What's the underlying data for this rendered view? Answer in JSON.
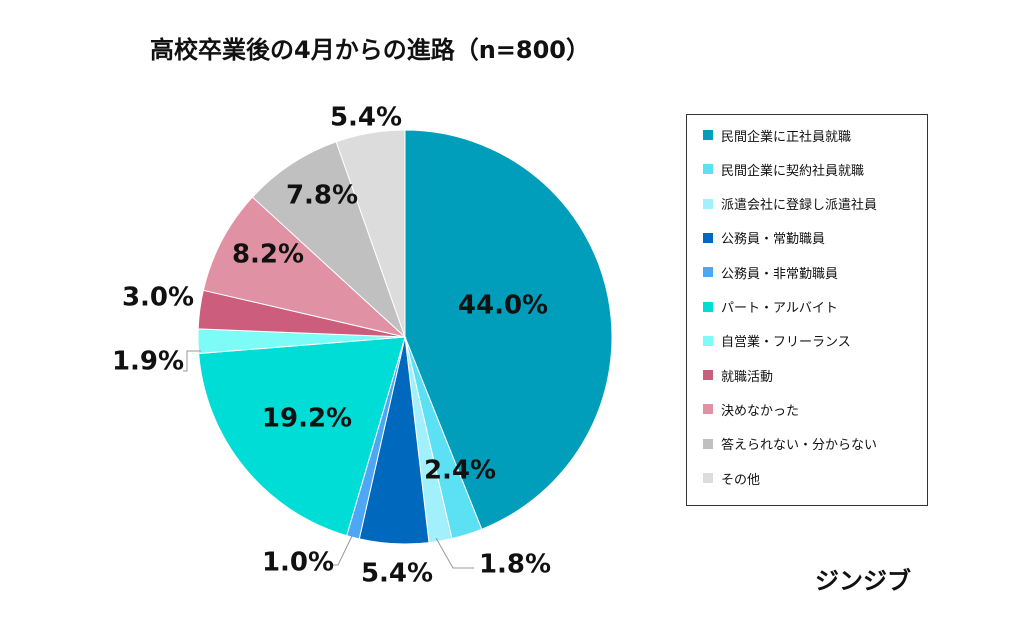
{
  "title": "高校卒業後の4月からの進路（n=800）",
  "brand": "ジンジブ",
  "chart_data": {
    "type": "pie",
    "title": "高校卒業後の4月からの進路（n=800）",
    "unit": "%",
    "legend_position": "right",
    "slices": [
      {
        "label": "民間企業に正社員就職",
        "value": 44.0,
        "display": "44.0%",
        "color": "#009eba"
      },
      {
        "label": "民間企業に契約社員就職",
        "value": 2.4,
        "display": "2.4%",
        "color": "#5ce0f3"
      },
      {
        "label": "派遣会社に登録し派遣社員",
        "value": 1.8,
        "display": "1.8%",
        "color": "#a2f0fb"
      },
      {
        "label": "公務員・常勤職員",
        "value": 5.4,
        "display": "5.4%",
        "color": "#0068bd"
      },
      {
        "label": "公務員・非常勤職員",
        "value": 1.0,
        "display": "1.0%",
        "color": "#4da7f5"
      },
      {
        "label": "パート・アルバイト",
        "value": 19.2,
        "display": "19.2%",
        "color": "#00ddd6"
      },
      {
        "label": "自営業・フリーランス",
        "value": 1.9,
        "display": "1.9%",
        "color": "#7cfbf7"
      },
      {
        "label": "就職活動",
        "value": 3.0,
        "display": "3.0%",
        "color": "#cc5d7d"
      },
      {
        "label": "決めなかった",
        "value": 8.2,
        "display": "8.2%",
        "color": "#e092a4"
      },
      {
        "label": "答えられない・分からない",
        "value": 7.8,
        "display": "7.8%",
        "color": "#c0c0c0"
      },
      {
        "label": "その他",
        "value": 5.4,
        "display": "5.4%",
        "color": "#dcdcdc"
      }
    ]
  }
}
